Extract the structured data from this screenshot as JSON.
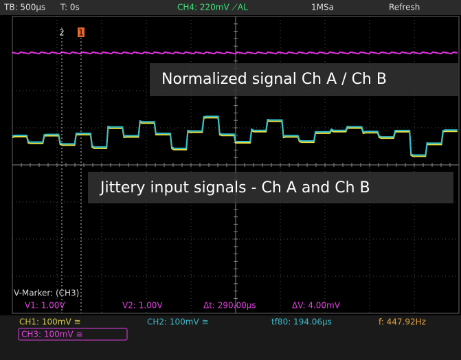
{
  "top_bar": {
    "timebase": "TB: 500µs",
    "trigger_time": "T: 0s",
    "trigger": "CH4: 220mV ⟋AL",
    "sample_rate": "1MSa",
    "mode": "Refresh"
  },
  "markers": {
    "marker_2": "2",
    "marker_1": "1"
  },
  "annotations": {
    "normalized": "Normalized signal Ch A / Ch B",
    "jittery": "Jittery input signals - Ch A and Ch B"
  },
  "v_marker": {
    "title": "V-Marker: (CH3)",
    "v1": "V1: 1.00V",
    "v2": "V2: 1.00V",
    "delta_t": "Δt: 290.00µs",
    "delta_v": "ΔV: 4.00mV"
  },
  "status": {
    "ch1": "CH1: 100mV ≅",
    "ch2": "CH2: 100mV ≅",
    "tf80": "tf80: 194.06µs",
    "freq": "f: 447.92Hz",
    "ch3": "CH3: 100mV ≅"
  }
}
